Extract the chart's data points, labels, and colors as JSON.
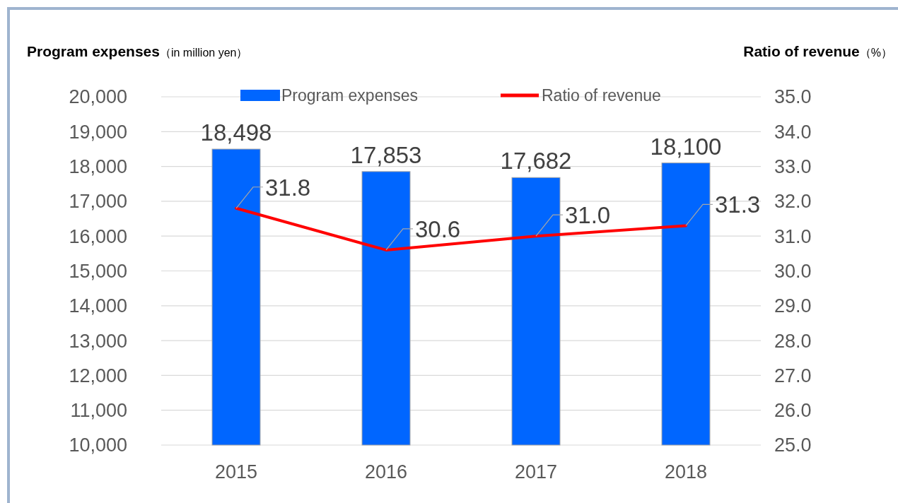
{
  "chart_data": {
    "type": "bar",
    "categories": [
      "2015",
      "2016",
      "2017",
      "2018"
    ],
    "ylabel": "Program expenses（in million yen）",
    "y2label": "Ratio of revenue（%）",
    "series": [
      {
        "name": "Program expenses",
        "color": "#0066ff",
        "values": [
          18498,
          17853,
          17682,
          18100
        ],
        "value_labels": [
          "18,498",
          "17,853",
          "17,682",
          "18,100"
        ]
      },
      {
        "name": "Ratio of revenue",
        "type": "line",
        "axis": "y2",
        "color": "#ff0000",
        "values": [
          31.8,
          30.6,
          31.0,
          31.3
        ],
        "value_labels": [
          "31.8",
          "30.6",
          "31.0",
          "31.3"
        ],
        "marker": "none",
        "line_style": "solid"
      }
    ],
    "ylim": [
      10000,
      20000
    ],
    "yticks": [
      {
        "value": 10000,
        "label": "10,000"
      },
      {
        "value": 11000,
        "label": "11,000"
      },
      {
        "value": 12000,
        "label": "12,000"
      },
      {
        "value": 13000,
        "label": "13,000"
      },
      {
        "value": 14000,
        "label": "14,000"
      },
      {
        "value": 15000,
        "label": "15,000"
      },
      {
        "value": 16000,
        "label": "16,000"
      },
      {
        "value": 17000,
        "label": "17,000"
      },
      {
        "value": 18000,
        "label": "18,000"
      },
      {
        "value": 19000,
        "label": "19,000"
      },
      {
        "value": 20000,
        "label": "20,000"
      }
    ],
    "y2lim": [
      25,
      35
    ],
    "y2ticks": [
      {
        "value": 25,
        "label": "25.0"
      },
      {
        "value": 26,
        "label": "26.0"
      },
      {
        "value": 27,
        "label": "27.0"
      },
      {
        "value": 28,
        "label": "28.0"
      },
      {
        "value": 29,
        "label": "29.0"
      },
      {
        "value": 30,
        "label": "30.0"
      },
      {
        "value": 31,
        "label": "31.0"
      },
      {
        "value": 32,
        "label": "32.0"
      },
      {
        "value": 33,
        "label": "33.0"
      },
      {
        "value": 34,
        "label": "34.0"
      },
      {
        "value": 35,
        "label": "35.0"
      }
    ],
    "grid": "y",
    "legend": "top"
  }
}
